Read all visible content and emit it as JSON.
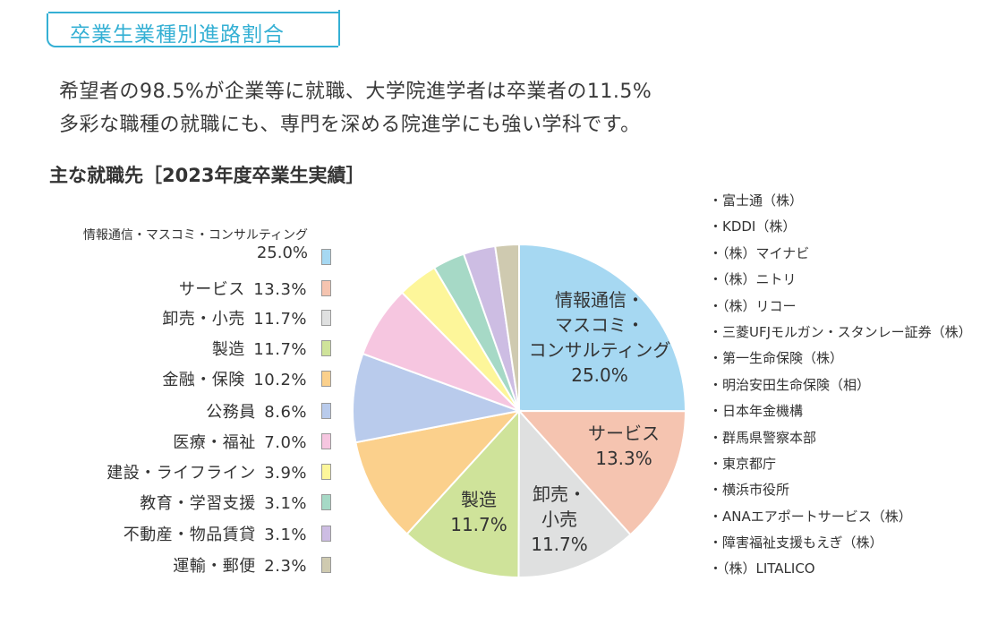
{
  "header": {
    "title": "卒業生業種別進路割合",
    "lead_line1": "希望者の98.5%が企業等に就職、大学院進学者は卒業者の11.5%",
    "lead_line2": "多彩な職種の就職にも、専門を深める院進学にも強い学科です。",
    "subhead": "主な就職先［2023年度卒業生実績］"
  },
  "chart_data": {
    "type": "pie",
    "title": "",
    "slices": [
      {
        "label": "情報通信・マスコミ・コンサルティング",
        "value": 25.0,
        "display": "25.0%",
        "color": "#a6d8f2",
        "pie_lines": [
          "情報通信・",
          "マスコミ・",
          "コンサルティング",
          "25.0%"
        ]
      },
      {
        "label": "サービス",
        "value": 13.3,
        "display": "13.3%",
        "color": "#f5c4b0",
        "pie_lines": [
          "サービス",
          "13.3%"
        ]
      },
      {
        "label": "卸売・小売",
        "value": 11.7,
        "display": "11.7%",
        "color": "#dfe0e0",
        "pie_lines": [
          "卸売・",
          "小売",
          "11.7%"
        ]
      },
      {
        "label": "製造",
        "value": 11.7,
        "display": "11.7%",
        "color": "#cfe39a",
        "pie_lines": [
          "製造",
          "11.7%"
        ]
      },
      {
        "label": "金融・保険",
        "value": 10.2,
        "display": "10.2%",
        "color": "#fbd08c",
        "pie_lines": []
      },
      {
        "label": "公務員",
        "value": 8.6,
        "display": "8.6%",
        "color": "#b9cbec",
        "pie_lines": []
      },
      {
        "label": "医療・福祉",
        "value": 7.0,
        "display": "7.0%",
        "color": "#f6c6e0",
        "pie_lines": []
      },
      {
        "label": "建設・ライフライン",
        "value": 3.9,
        "display": "3.9%",
        "color": "#fdf69a",
        "pie_lines": []
      },
      {
        "label": "教育・学習支援",
        "value": 3.1,
        "display": "3.1%",
        "color": "#a6d9c6",
        "pie_lines": []
      },
      {
        "label": "不動産・物品賃貸",
        "value": 3.1,
        "display": "3.1%",
        "color": "#cdbde3",
        "pie_lines": []
      },
      {
        "label": "運輸・郵便",
        "value": 2.3,
        "display": "2.3%",
        "color": "#cfcab0",
        "pie_lines": []
      }
    ]
  },
  "companies": [
    "・富士通（株）",
    "・KDDI（株）",
    "・（株）マイナビ",
    "・（株）ニトリ",
    "・（株）リコー",
    "・三菱UFJモルガン・スタンレー証券（株）",
    "・第一生命保険（株）",
    "・明治安田生命保険（相）",
    "・日本年金機構",
    "・群馬県警察本部",
    "・東京都庁",
    "・横浜市役所",
    "・ANAエアポートサービス（株）",
    "・障害福祉支援もえぎ（株）",
    "・（株）LITALICO"
  ]
}
